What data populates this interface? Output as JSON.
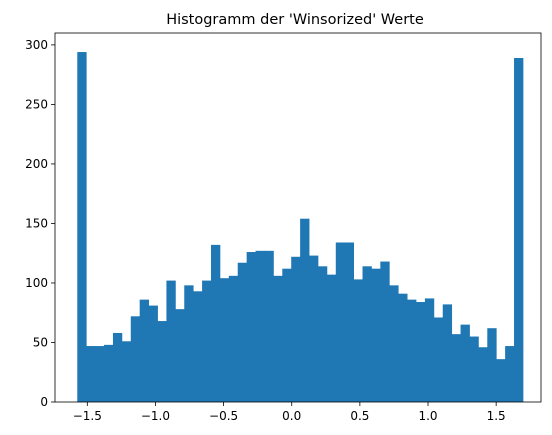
{
  "chart_data": {
    "type": "bar",
    "title": "Histogramm der 'Winsorized' Werte",
    "xlabel": "",
    "ylabel": "",
    "bin_start": -1.5734,
    "bin_width": 0.0654,
    "values": [
      294,
      47,
      47,
      48,
      58,
      51,
      72,
      86,
      81,
      68,
      102,
      78,
      98,
      93,
      102,
      132,
      104,
      106,
      117,
      126,
      127,
      127,
      106,
      112,
      122,
      154,
      123,
      114,
      107,
      134,
      134,
      103,
      114,
      112,
      118,
      98,
      91,
      86,
      84,
      87,
      71,
      82,
      57,
      65,
      55,
      46,
      62,
      36,
      47,
      289
    ],
    "xlim": [
      -1.737,
      1.829
    ],
    "ylim": [
      0,
      310
    ],
    "xticks": [
      -1.5,
      -1.0,
      -0.5,
      0.0,
      0.5,
      1.0,
      1.5
    ],
    "xtick_labels": [
      "−1.5",
      "−1.0",
      "−0.5",
      "0.0",
      "0.5",
      "1.0",
      "1.5"
    ],
    "yticks": [
      0,
      50,
      100,
      150,
      200,
      250,
      300
    ],
    "ytick_labels": [
      "0",
      "50",
      "100",
      "150",
      "200",
      "250",
      "300"
    ],
    "bar_color": "#1f77b4",
    "grid": false,
    "legend": "none"
  }
}
